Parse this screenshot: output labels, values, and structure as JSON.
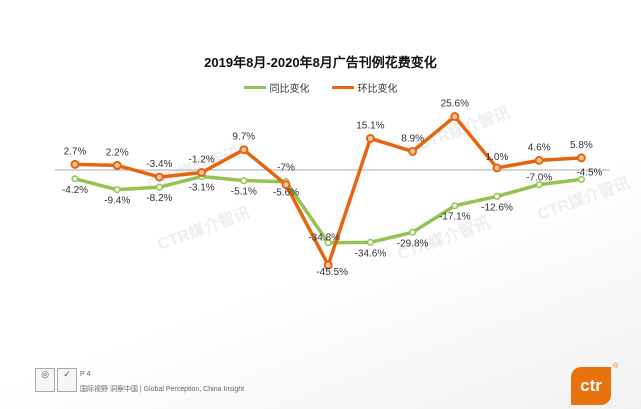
{
  "chart_data": {
    "type": "line",
    "title": "2019年8月-2020年8月广告刊例花费变化",
    "x": [
      1,
      2,
      3,
      4,
      5,
      6,
      7,
      8,
      9,
      10,
      11,
      12,
      13
    ],
    "series": [
      {
        "name": "同比变化",
        "color": "#92c353",
        "values": [
          -4.2,
          -9.4,
          -8.2,
          -3.1,
          -5.1,
          -5.6,
          -34.8,
          -34.6,
          -29.8,
          -17.1,
          -12.6,
          -7.0,
          -4.5
        ],
        "labels": [
          "-4.2%",
          "-9.4%",
          "-8.2%",
          "-3.1%",
          "-5.1%",
          "-5.6%",
          "-34.8%",
          "-34.6%",
          "-29.8%",
          "-17.1%",
          "-12.6%",
          "-7.0%",
          "-4.5%"
        ]
      },
      {
        "name": "环比变化",
        "color": "#e8650f",
        "values": [
          2.7,
          2.2,
          -3.4,
          -1.2,
          9.7,
          -7,
          -45.5,
          15.1,
          8.9,
          25.6,
          1.0,
          4.6,
          5.8
        ],
        "labels": [
          "2.7%",
          "2.2%",
          "-3.4%",
          "-1.2%",
          "9.7%",
          "-7%",
          "-45.5%",
          "15.1%",
          "8.9%",
          "25.6%",
          "1.0%",
          "4.6%",
          "5.8%"
        ]
      }
    ],
    "legend": "top",
    "grid": false,
    "zero_line": true
  },
  "watermark": "CTR媒介智讯",
  "footer": {
    "page": "P 4",
    "tagline": "国际视野 洞察中国 | Global Perception, China Insight",
    "logo": "ctr"
  }
}
